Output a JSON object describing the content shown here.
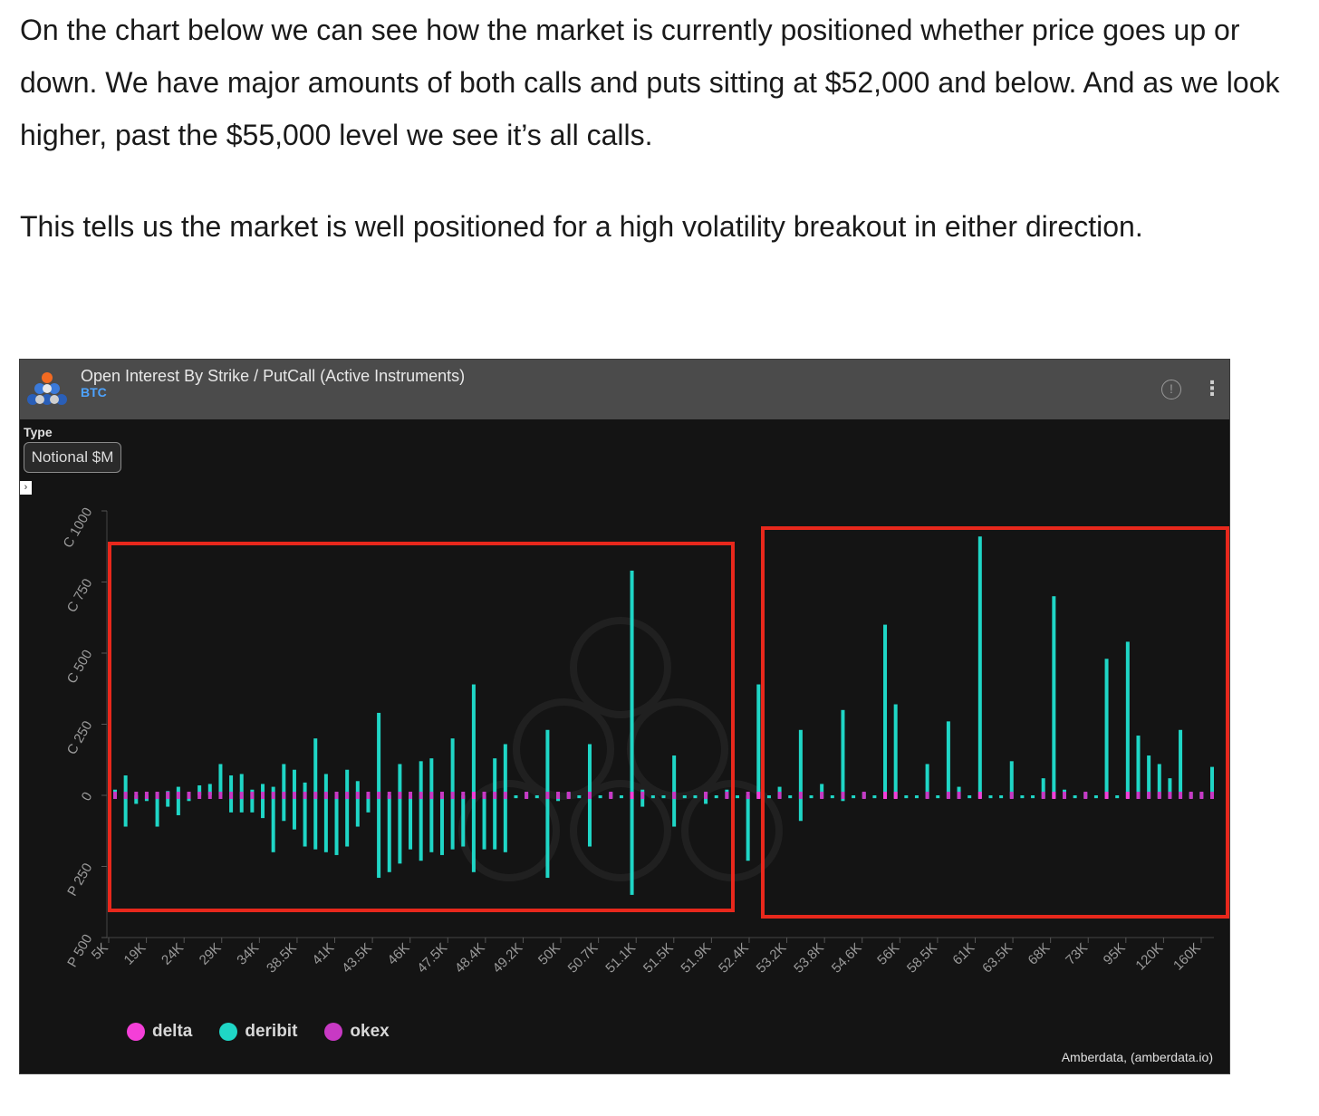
{
  "article": {
    "paragraph_1": "On the chart below we can see how the market is currently positioned whether price goes up or down. We have major amounts of both calls and puts sitting at $52,000 and below. And as we look higher, past the $55,000 level we see it’s all calls.",
    "paragraph_2": "This tells us the market is well positioned for a high volatility breakout in either direction."
  },
  "widget": {
    "title": "Open Interest By Strike / PutCall (Active Instruments)",
    "subtitle": "BTC",
    "type_label": "Type",
    "type_value": "Notional $M",
    "info_icon": "!",
    "menu_icon": "⋮",
    "expand_icon": "›",
    "credit": "Amberdata, (amberdata.io)"
  },
  "colors": {
    "delta": "#f43fd8",
    "deribit": "#1fd6c6",
    "okex": "#c839c4",
    "highlight_box": "#e8281c"
  },
  "chart_data": {
    "type": "bar",
    "title": "Open Interest By Strike / PutCall (Active Instruments)",
    "ylabel": "",
    "xlabel": "",
    "y_ticks": [
      "C 1000",
      "C 750",
      "C 500",
      "C 250",
      "0",
      "P 250",
      "P 500"
    ],
    "y_tick_values": [
      1000,
      750,
      500,
      250,
      0,
      -250,
      -500
    ],
    "ylim": [
      -500,
      1000
    ],
    "x_tick_labels": [
      "5K",
      "19K",
      "24K",
      "29K",
      "34K",
      "38.5K",
      "41K",
      "43.5K",
      "46K",
      "47.5K",
      "48.4K",
      "49.2K",
      "50K",
      "50.7K",
      "51.1K",
      "51.5K",
      "51.9K",
      "52.4K",
      "53.2K",
      "53.8K",
      "54.6K",
      "56K",
      "58.5K",
      "61K",
      "63.5K",
      "68K",
      "73K",
      "95K",
      "120K",
      "160K"
    ],
    "legend": [
      {
        "name": "delta",
        "color": "#f43fd8"
      },
      {
        "name": "deribit",
        "color": "#1fd6c6"
      },
      {
        "name": "okex",
        "color": "#c839c4"
      }
    ],
    "legend_placement": "bottom-left",
    "series": [
      {
        "name": "deribit",
        "strike_index": [
          0,
          1,
          2,
          3,
          4,
          5,
          6,
          7,
          8,
          9,
          10,
          11,
          12,
          13,
          14,
          15,
          16,
          17,
          18,
          19,
          20,
          21,
          22,
          23,
          24,
          25,
          26,
          27,
          28,
          29,
          30,
          31,
          32,
          33,
          34,
          35,
          36,
          37,
          38,
          39,
          40,
          41,
          42,
          43,
          44,
          45,
          46,
          47,
          48,
          49,
          50,
          51,
          52,
          53,
          54,
          55,
          56,
          57,
          58,
          59,
          60,
          61,
          62,
          63,
          64,
          65,
          66,
          67,
          68,
          69,
          70,
          71,
          72,
          73,
          74,
          75,
          76,
          77,
          78,
          79,
          80,
          81,
          82,
          83,
          84,
          85,
          86,
          87,
          88,
          89,
          90,
          91,
          92,
          93,
          94,
          95,
          96,
          97,
          98,
          99,
          100,
          101,
          102,
          103,
          104
        ],
        "calls": [
          20,
          70,
          0,
          0,
          10,
          15,
          30,
          0,
          35,
          40,
          110,
          70,
          75,
          20,
          40,
          30,
          110,
          90,
          45,
          200,
          75,
          0,
          90,
          50,
          0,
          290,
          0,
          110,
          0,
          120,
          130,
          0,
          200,
          0,
          390,
          0,
          130,
          180,
          0,
          10,
          0,
          230,
          0,
          10,
          0,
          180,
          0,
          10,
          0,
          790,
          20,
          0,
          0,
          140,
          0,
          0,
          10,
          0,
          20,
          0,
          0,
          390,
          0,
          30,
          0,
          230,
          0,
          40,
          0,
          300,
          0,
          10,
          0,
          600,
          320,
          0,
          0,
          110,
          0,
          260,
          30,
          0,
          910,
          0,
          0,
          120,
          0,
          0,
          60,
          700,
          20,
          0,
          10,
          0,
          480,
          0,
          540,
          210,
          140,
          110,
          60,
          230,
          10,
          10,
          100
        ],
        "puts": [
          0,
          -110,
          -30,
          -20,
          -110,
          -40,
          -70,
          -20,
          0,
          0,
          0,
          -60,
          -60,
          -60,
          -80,
          -200,
          -90,
          -120,
          -180,
          -190,
          -200,
          -210,
          -180,
          -110,
          -60,
          -290,
          -270,
          -240,
          -190,
          -230,
          -200,
          -210,
          -190,
          -180,
          -270,
          -190,
          -190,
          -200,
          -10,
          -10,
          -10,
          -290,
          -20,
          -10,
          -10,
          -180,
          -10,
          -10,
          -10,
          -350,
          -40,
          -10,
          -10,
          -110,
          -10,
          -10,
          -30,
          -10,
          -10,
          -10,
          -230,
          -10,
          -10,
          -10,
          -10,
          -90,
          -10,
          -10,
          -10,
          -20,
          -10,
          -10,
          -10,
          -10,
          -10,
          -10,
          -10,
          -10,
          -10,
          -10,
          -10,
          -10,
          -10,
          -10,
          -10,
          -10,
          -10,
          -10,
          -10,
          -10,
          -10,
          -10,
          -10,
          -10,
          -10,
          -10,
          -10,
          -10,
          -10,
          -10,
          -10,
          -10,
          -10,
          -10,
          -10
        ]
      },
      {
        "name": "okex",
        "note": "small stacked segments near zero line"
      }
    ],
    "grid": false
  }
}
